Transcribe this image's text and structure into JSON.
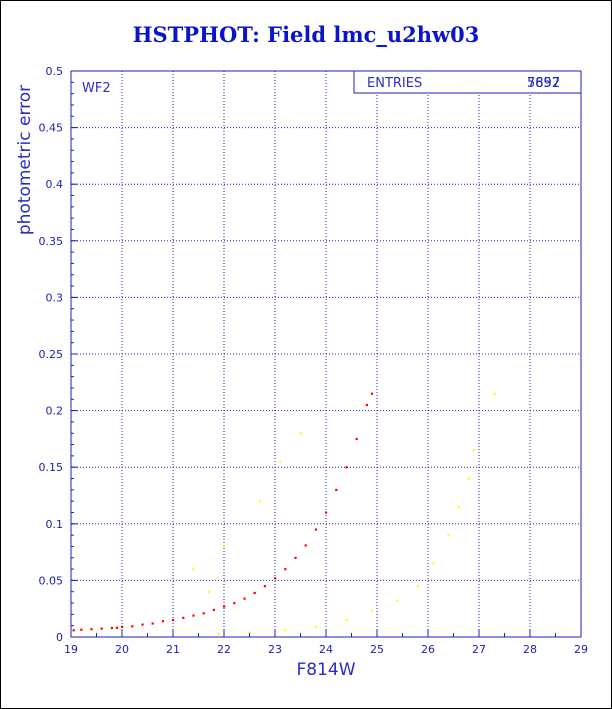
{
  "title": "HSTPHOT: Field lmc_u2hw03",
  "chart_data": {
    "type": "scatter",
    "xlabel": "F814W",
    "ylabel": "photometric error",
    "xlim": [
      19,
      29
    ],
    "ylim": [
      0,
      0.5
    ],
    "x_ticks": [
      "19",
      "20",
      "21",
      "22",
      "23",
      "24",
      "25",
      "26",
      "27",
      "28",
      "29"
    ],
    "y_ticks": [
      "0",
      "0.05",
      "0.1",
      "0.15",
      "0.2",
      "0.25",
      "0.3",
      "0.35",
      "0.4",
      "0.45",
      "0.5"
    ],
    "grid": true,
    "panel_label": "WF2",
    "stats_box": {
      "label": "ENTRIES",
      "value_a": "7697",
      "value_b": "5852"
    },
    "colors": {
      "main": "#ff0000",
      "secondary": "#ffff00",
      "title": "#0a14c8",
      "axis": "#1e22b4"
    },
    "series": [
      {
        "color": "#ff0000",
        "points": [
          [
            19.05,
            0.006
          ],
          [
            19.2,
            0.0065
          ],
          [
            19.4,
            0.007
          ],
          [
            19.6,
            0.0075
          ],
          [
            19.8,
            0.008
          ],
          [
            19.9,
            0.0082
          ],
          [
            20.0,
            0.009
          ],
          [
            20.2,
            0.0095
          ],
          [
            20.4,
            0.011
          ],
          [
            20.6,
            0.012
          ],
          [
            20.8,
            0.014
          ],
          [
            21.0,
            0.015
          ],
          [
            21.2,
            0.017
          ],
          [
            21.4,
            0.019
          ],
          [
            21.6,
            0.021
          ],
          [
            21.8,
            0.024
          ],
          [
            22.0,
            0.027
          ],
          [
            22.2,
            0.03
          ],
          [
            22.4,
            0.034
          ],
          [
            22.6,
            0.039
          ],
          [
            22.8,
            0.045
          ],
          [
            23.0,
            0.052
          ],
          [
            23.2,
            0.06
          ],
          [
            23.4,
            0.07
          ],
          [
            23.6,
            0.081
          ],
          [
            23.8,
            0.095
          ],
          [
            24.0,
            0.11
          ],
          [
            24.2,
            0.13
          ],
          [
            24.4,
            0.15
          ],
          [
            24.6,
            0.175
          ],
          [
            24.8,
            0.205
          ],
          [
            24.9,
            0.215
          ]
        ]
      },
      {
        "color": "#ffff00",
        "points": [
          [
            21.9,
            0.003
          ],
          [
            22.5,
            0.004
          ],
          [
            23.2,
            0.006
          ],
          [
            23.8,
            0.009
          ],
          [
            24.4,
            0.015
          ],
          [
            24.9,
            0.023
          ],
          [
            25.4,
            0.032
          ],
          [
            25.8,
            0.045
          ],
          [
            26.1,
            0.065
          ],
          [
            26.4,
            0.09
          ],
          [
            26.6,
            0.115
          ],
          [
            26.8,
            0.14
          ],
          [
            26.9,
            0.165
          ],
          [
            27.3,
            0.215
          ],
          [
            21.4,
            0.06
          ],
          [
            22.0,
            0.08
          ],
          [
            22.7,
            0.12
          ],
          [
            23.1,
            0.155
          ],
          [
            23.5,
            0.18
          ],
          [
            21.7,
            0.04
          ]
        ]
      }
    ]
  }
}
